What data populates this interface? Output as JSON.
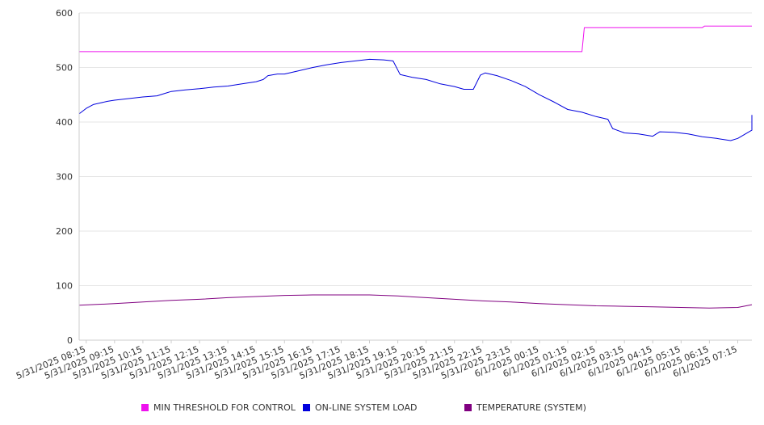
{
  "chart_data": {
    "type": "line",
    "title": "",
    "xlabel": "",
    "ylabel": "",
    "ylim": [
      0,
      600
    ],
    "yticks": [
      0,
      100,
      200,
      300,
      400,
      500,
      600
    ],
    "grid": "horizontal",
    "legend_position": "bottom",
    "xticks": [
      "5/31/2025 08:15",
      "5/31/2025 09:15",
      "5/31/2025 10:15",
      "5/31/2025 11:15",
      "5/31/2025 12:15",
      "5/31/2025 13:15",
      "5/31/2025 14:15",
      "5/31/2025 15:15",
      "5/31/2025 16:15",
      "5/31/2025 17:15",
      "5/31/2025 18:15",
      "5/31/2025 19:15",
      "5/31/2025 20:15",
      "5/31/2025 21:15",
      "5/31/2025 22:15",
      "5/31/2025 23:15",
      "6/1/2025 00:15",
      "6/1/2025 01:15",
      "6/1/2025 02:15",
      "6/1/2025 03:15",
      "6/1/2025 04:15",
      "6/1/2025 05:15",
      "6/1/2025 06:15",
      "6/1/2025 07:15"
    ],
    "x_start": "5/31/2025 08:00",
    "x_end": "6/1/2025 07:45",
    "series": [
      {
        "name": "MIN THRESHOLD FOR CONTROL",
        "color": "#ee11ee",
        "step": true,
        "points": [
          [
            "5/31/2025 08:00",
            529
          ],
          [
            "6/1/2025 01:45",
            529
          ],
          [
            "6/1/2025 01:50",
            573
          ],
          [
            "6/1/2025 06:00",
            573
          ],
          [
            "6/1/2025 06:05",
            576
          ],
          [
            "6/1/2025 07:45",
            576
          ]
        ]
      },
      {
        "name": "ON-LINE SYSTEM LOAD",
        "color": "#0000dd",
        "points": [
          [
            "5/31/2025 08:00",
            415
          ],
          [
            "5/31/2025 08:15",
            425
          ],
          [
            "5/31/2025 08:30",
            432
          ],
          [
            "5/31/2025 08:45",
            435
          ],
          [
            "5/31/2025 09:00",
            438
          ],
          [
            "5/31/2025 09:15",
            440
          ],
          [
            "5/31/2025 09:45",
            443
          ],
          [
            "5/31/2025 10:15",
            446
          ],
          [
            "5/31/2025 10:45",
            448
          ],
          [
            "5/31/2025 11:00",
            452
          ],
          [
            "5/31/2025 11:15",
            456
          ],
          [
            "5/31/2025 11:45",
            459
          ],
          [
            "5/31/2025 12:15",
            461
          ],
          [
            "5/31/2025 12:45",
            464
          ],
          [
            "5/31/2025 13:15",
            466
          ],
          [
            "5/31/2025 13:45",
            470
          ],
          [
            "5/31/2025 14:15",
            474
          ],
          [
            "5/31/2025 14:30",
            478
          ],
          [
            "5/31/2025 14:40",
            485
          ],
          [
            "5/31/2025 15:00",
            488
          ],
          [
            "5/31/2025 15:15",
            488
          ],
          [
            "5/31/2025 15:45",
            494
          ],
          [
            "5/31/2025 16:15",
            500
          ],
          [
            "5/31/2025 16:45",
            505
          ],
          [
            "5/31/2025 17:15",
            509
          ],
          [
            "5/31/2025 17:45",
            512
          ],
          [
            "5/31/2025 18:15",
            515
          ],
          [
            "5/31/2025 18:45",
            514
          ],
          [
            "5/31/2025 19:05",
            512
          ],
          [
            "5/31/2025 19:20",
            487
          ],
          [
            "5/31/2025 19:45",
            482
          ],
          [
            "5/31/2025 20:15",
            478
          ],
          [
            "5/31/2025 20:45",
            470
          ],
          [
            "5/31/2025 21:15",
            465
          ],
          [
            "5/31/2025 21:35",
            460
          ],
          [
            "5/31/2025 21:55",
            460
          ],
          [
            "5/31/2025 22:10",
            486
          ],
          [
            "5/31/2025 22:20",
            490
          ],
          [
            "5/31/2025 22:45",
            485
          ],
          [
            "5/31/2025 23:15",
            476
          ],
          [
            "5/31/2025 23:45",
            465
          ],
          [
            "6/1/2025 00:15",
            450
          ],
          [
            "6/1/2025 00:45",
            437
          ],
          [
            "6/1/2025 01:15",
            423
          ],
          [
            "6/1/2025 01:45",
            418
          ],
          [
            "6/1/2025 02:15",
            410
          ],
          [
            "6/1/2025 02:40",
            405
          ],
          [
            "6/1/2025 02:50",
            388
          ],
          [
            "6/1/2025 03:15",
            380
          ],
          [
            "6/1/2025 03:45",
            378
          ],
          [
            "6/1/2025 04:15",
            374
          ],
          [
            "6/1/2025 04:30",
            382
          ],
          [
            "6/1/2025 05:00",
            381
          ],
          [
            "6/1/2025 05:30",
            378
          ],
          [
            "6/1/2025 06:00",
            373
          ],
          [
            "6/1/2025 06:30",
            370
          ],
          [
            "6/1/2025 07:00",
            366
          ],
          [
            "6/1/2025 07:15",
            370
          ],
          [
            "6/1/2025 07:45",
            385
          ],
          [
            "6/1/2025 08:15",
            392
          ],
          [
            "6/1/2025 08:45",
            400
          ],
          [
            "6/1/2025 09:00",
            408
          ],
          [
            "6/1/2025 09:15",
            413
          ]
        ]
      },
      {
        "name": "TEMPERATURE (SYSTEM)",
        "color": "#800080",
        "points": [
          [
            "5/31/2025 08:00",
            64
          ],
          [
            "5/31/2025 09:15",
            67
          ],
          [
            "5/31/2025 10:15",
            70
          ],
          [
            "5/31/2025 11:15",
            73
          ],
          [
            "5/31/2025 12:15",
            75
          ],
          [
            "5/31/2025 13:15",
            78
          ],
          [
            "5/31/2025 14:15",
            80
          ],
          [
            "5/31/2025 15:15",
            82
          ],
          [
            "5/31/2025 16:15",
            83
          ],
          [
            "5/31/2025 17:15",
            83
          ],
          [
            "5/31/2025 18:15",
            83
          ],
          [
            "5/31/2025 19:15",
            81
          ],
          [
            "5/31/2025 20:15",
            78
          ],
          [
            "5/31/2025 21:15",
            75
          ],
          [
            "5/31/2025 22:15",
            72
          ],
          [
            "5/31/2025 23:15",
            70
          ],
          [
            "6/1/2025 00:15",
            67
          ],
          [
            "6/1/2025 01:15",
            65
          ],
          [
            "6/1/2025 02:15",
            63
          ],
          [
            "6/1/2025 03:15",
            62
          ],
          [
            "6/1/2025 04:15",
            61
          ],
          [
            "6/1/2025 05:15",
            60
          ],
          [
            "6/1/2025 06:15",
            59
          ],
          [
            "6/1/2025 07:15",
            60
          ],
          [
            "6/1/2025 07:45",
            65
          ]
        ]
      }
    ]
  }
}
